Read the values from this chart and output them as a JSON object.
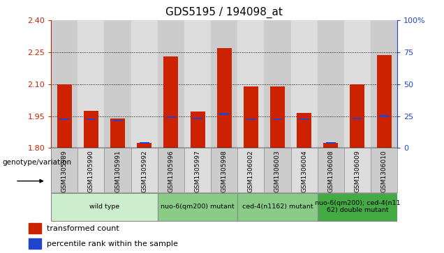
{
  "title": "GDS5195 / 194098_at",
  "samples": [
    "GSM1305989",
    "GSM1305990",
    "GSM1305991",
    "GSM1305992",
    "GSM1305996",
    "GSM1305997",
    "GSM1305998",
    "GSM1306002",
    "GSM1306003",
    "GSM1306004",
    "GSM1306008",
    "GSM1306009",
    "GSM1306010"
  ],
  "red_values": [
    2.1,
    1.975,
    1.94,
    1.825,
    2.23,
    1.97,
    2.27,
    2.09,
    2.09,
    1.965,
    1.825,
    2.1,
    2.235
  ],
  "blue_values": [
    1.935,
    1.935,
    1.93,
    1.825,
    1.945,
    1.94,
    1.96,
    1.935,
    1.935,
    1.935,
    1.825,
    1.94,
    1.95
  ],
  "y_min": 1.8,
  "y_max": 2.4,
  "y_ticks": [
    1.8,
    1.95,
    2.1,
    2.25,
    2.4
  ],
  "y2_ticks_labels": [
    "0",
    "25",
    "50",
    "75",
    "100%"
  ],
  "y2_tick_vals": [
    1.8,
    1.95,
    2.1,
    2.25,
    2.4
  ],
  "groups": [
    {
      "label": "wild type",
      "start": 0,
      "end": 4,
      "color": "#cceecc"
    },
    {
      "label": "nuo-6(qm200) mutant",
      "start": 4,
      "end": 7,
      "color": "#88cc88"
    },
    {
      "label": "ced-4(n1162) mutant",
      "start": 7,
      "end": 10,
      "color": "#88cc88"
    },
    {
      "label": "nuo-6(qm200); ced-4(n11\n62) double mutant",
      "start": 10,
      "end": 13,
      "color": "#44aa44"
    }
  ],
  "bar_color": "#cc2200",
  "blue_color": "#2244cc",
  "bar_width": 0.55,
  "xlabel": "genotype/variation",
  "legend_items": [
    "transformed count",
    "percentile rank within the sample"
  ],
  "axis_color_left": "#cc2200",
  "axis_color_right": "#2244cc",
  "col_colors": [
    "#cccccc",
    "#dddddd"
  ]
}
